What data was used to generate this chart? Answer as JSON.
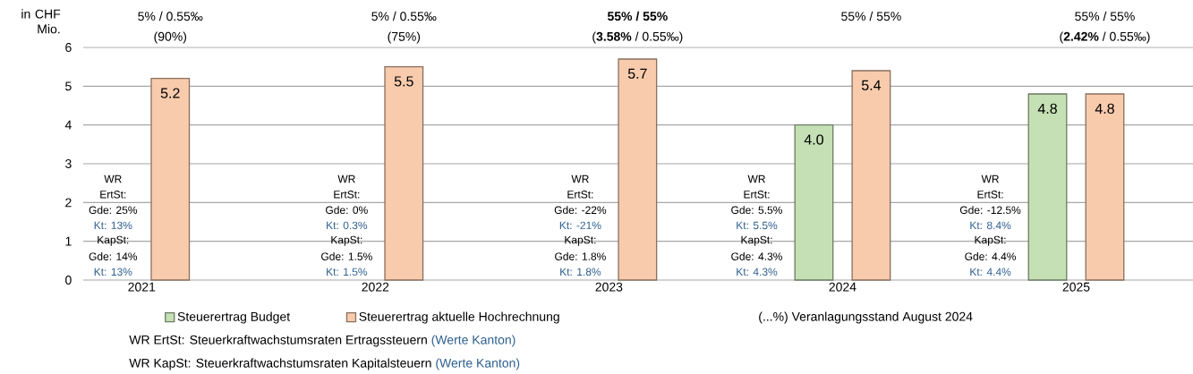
{
  "chart_data": {
    "type": "bar",
    "ylabel": "in CHF Mio.",
    "categories": [
      "2021",
      "2022",
      "2023",
      "2024",
      "2025"
    ],
    "series": [
      {
        "name": "Steuerertrag Budget",
        "color": "#c5e0b4",
        "values": [
          null,
          null,
          null,
          4.0,
          4.8
        ],
        "value_labels": [
          null,
          null,
          null,
          "4.0",
          "4.8"
        ]
      },
      {
        "name": "Steuerertrag aktuelle Hochrechnung",
        "color": "#f8cbad",
        "values": [
          5.2,
          5.5,
          5.7,
          5.4,
          4.8
        ],
        "value_labels": [
          "5.2",
          "5.5",
          "5.7",
          "5.4",
          "4.8"
        ]
      }
    ],
    "ylim": [
      0,
      6
    ],
    "yticks": [
      0,
      1,
      2,
      3,
      4,
      5,
      6
    ],
    "grid": "y",
    "legend": "bottom",
    "annotations": [
      "5% / 0.55‰",
      "(90%)",
      "5% / 0.55‰",
      "(75%)",
      "**55% / 55%**",
      "(**3.58%** / 0.55‰)",
      "55% / 55%",
      "55% / 55%",
      "(**2.42%** / 0.55‰)",
      "WR",
      "ErtSt:",
      "Gde: 25%",
      "Kt: 13%",
      "KapSt:",
      "Gde: 14%",
      "Kt: 13%",
      "WR",
      "ErtSt:",
      "Gde: 0%",
      "Kt: 0.3%",
      "KapSt:",
      "Gde: 1.5%",
      "Kt: 1.5%",
      "WR",
      "ErtSt:",
      "Gde: -22%",
      "Kt: -21%",
      "KapSt:",
      "Gde: 1.8%",
      "Kt: 1.8%",
      "WR",
      "ErtSt:",
      "Gde: 5.5%",
      "Kt: 5.5%",
      "KapSt:",
      "Gde: 4.3%",
      "Kt: 4.3%",
      "WR",
      "ErtSt:",
      "Gde: -12.5%",
      "Kt: 8.4%",
      "KapSt:",
      "Gde: 4.4%",
      "Kt: 4.4%",
      "(...%) Veranlagungsstand August 2024",
      "WR ErtSt: Steuerkraftwachstumsraten Ertragssteuern",
      "(Werte Kanton)",
      "WR KapSt: Steuerkraftwachstumsraten Kapitalsteuern",
      "(Werte Kanton)"
    ]
  }
}
